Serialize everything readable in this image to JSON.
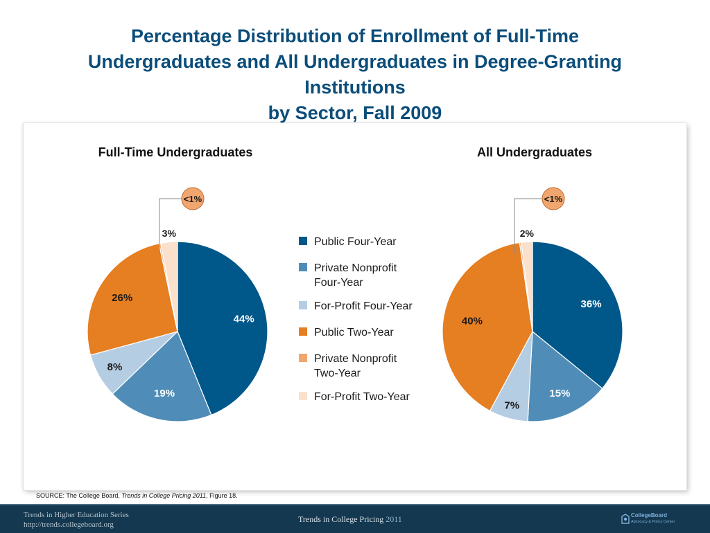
{
  "title": {
    "line1": "Percentage Distribution of Enrollment of Full-Time",
    "line2": "Undergraduates and All Undergraduates in Degree-Granting",
    "line3": "Institutions",
    "line4": "by Sector, Fall 2009"
  },
  "colors": {
    "Public Four-Year": "#00578a",
    "Private Nonprofit Four-Year": "#4f8db8",
    "For-Profit Four-Year": "#b5cde2",
    "Public Two-Year": "#e67e22",
    "Private Nonprofit Two-Year": "#f2a66f",
    "For-Profit Two-Year": "#fbe0cc"
  },
  "chart_data": [
    {
      "type": "pie",
      "title": "Full-Time Undergraduates",
      "categories": [
        "Public Four-Year",
        "Private Nonprofit Four-Year",
        "For-Profit Four-Year",
        "Public Two-Year",
        "Private Nonprofit Two-Year",
        "For-Profit Two-Year"
      ],
      "values": [
        44,
        19,
        8,
        26,
        0.3,
        3
      ],
      "labels": [
        "44%",
        "19%",
        "8%",
        "26%",
        "<1%",
        "3%"
      ],
      "legend": "center"
    },
    {
      "type": "pie",
      "title": "All Undergraduates",
      "categories": [
        "Public Four-Year",
        "Private Nonprofit Four-Year",
        "For-Profit Four-Year",
        "Public Two-Year",
        "Private Nonprofit Two-Year",
        "For-Profit Two-Year"
      ],
      "values": [
        36,
        15,
        7,
        40,
        0.3,
        2
      ],
      "labels": [
        "36%",
        "15%",
        "7%",
        "40%",
        "<1%",
        "2%"
      ],
      "legend": "center"
    }
  ],
  "legend": {
    "items": [
      {
        "lines": [
          "Public Four-Year"
        ],
        "color": "#00578a"
      },
      {
        "lines": [
          "Private Nonprofit",
          "Four-Year"
        ],
        "color": "#4f8db8"
      },
      {
        "lines": [
          "For-Profit Four-Year"
        ],
        "color": "#b5cde2"
      },
      {
        "lines": [
          "Public Two-Year"
        ],
        "color": "#e67e22"
      },
      {
        "lines": [
          "Private Nonprofit",
          "Two-Year"
        ],
        "color": "#f2a66f"
      },
      {
        "lines": [
          "For-Profit Two-Year"
        ],
        "color": "#fbe0cc"
      }
    ]
  },
  "source": {
    "prefix": "SOURCE: The College Board, ",
    "italic": "Trends in College Pricing 2011",
    "suffix": ", Figure 18."
  },
  "footer": {
    "series_line1": "Trends in Higher Education Series",
    "series_line2": "http://trends.collegeboard.org",
    "center_text": "Trends in College Pricing",
    "center_year": "2011",
    "logo_name": "CollegeBoard",
    "logo_sub": "Advocacy & Policy Center",
    "logo_icon": "collegeboard-logo-icon"
  }
}
